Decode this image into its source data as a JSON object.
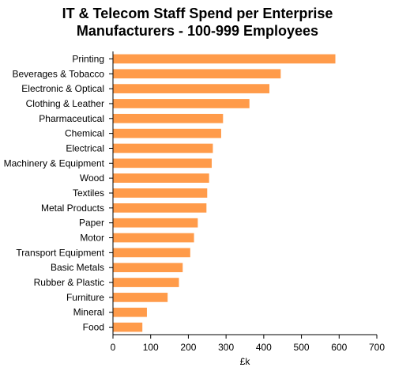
{
  "chart_data": {
    "type": "bar",
    "orientation": "horizontal",
    "title_lines": [
      "IT & Telecom Staff Spend per Enterprise",
      "Manufacturers - 100-999 Employees"
    ],
    "xlabel": "£k",
    "ylabel": "",
    "xlim": [
      0,
      700
    ],
    "xticks": [
      0,
      100,
      200,
      300,
      400,
      500,
      600,
      700
    ],
    "grid": false,
    "bar_color": "#ff9b4a",
    "categories": [
      "Printing",
      "Beverages & Tobacco",
      "Electronic & Optical",
      "Clothing & Leather",
      "Pharmaceutical",
      "Chemical",
      "Electrical",
      "Machinery & Equipment",
      "Wood",
      "Textiles",
      "Metal Products",
      "Paper",
      "Motor",
      "Transport Equipment",
      "Basic Metals",
      "Rubber & Plastic",
      "Furniture",
      "Mineral",
      "Food"
    ],
    "values": [
      590,
      445,
      415,
      362,
      292,
      287,
      265,
      262,
      255,
      250,
      248,
      225,
      215,
      205,
      185,
      175,
      145,
      90,
      78
    ]
  }
}
